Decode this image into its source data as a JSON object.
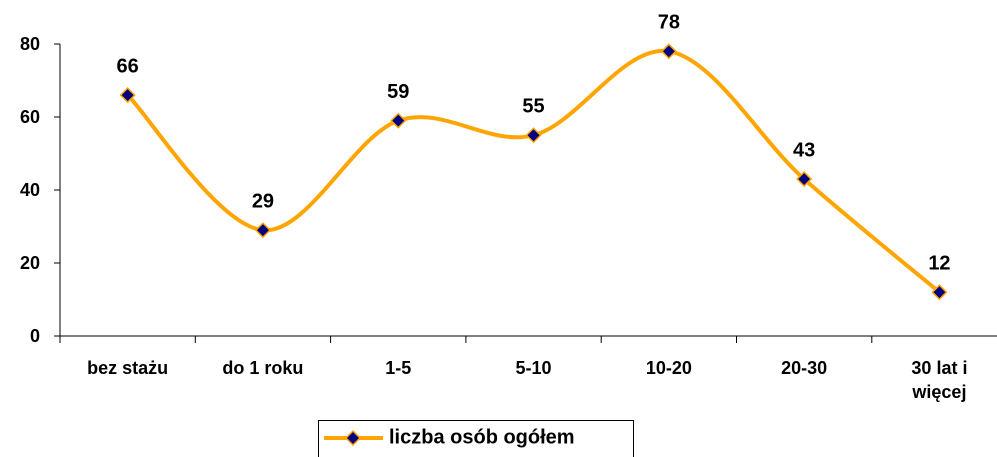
{
  "chart_data": {
    "type": "line",
    "categories": [
      "bez stażu",
      "do 1 roku",
      "1-5",
      "5-10",
      "10-20",
      "20-30",
      "30 lat i więcej"
    ],
    "series": [
      {
        "name": "liczba osób ogółem",
        "color": "#ffa500",
        "marker_color": "#000080",
        "values": [
          66,
          29,
          59,
          55,
          78,
          43,
          12
        ]
      }
    ],
    "ylim": [
      0,
      80
    ],
    "yticks": [
      0,
      20,
      40,
      60,
      80
    ],
    "grid": false,
    "smooth": true,
    "legend": "bottom"
  }
}
